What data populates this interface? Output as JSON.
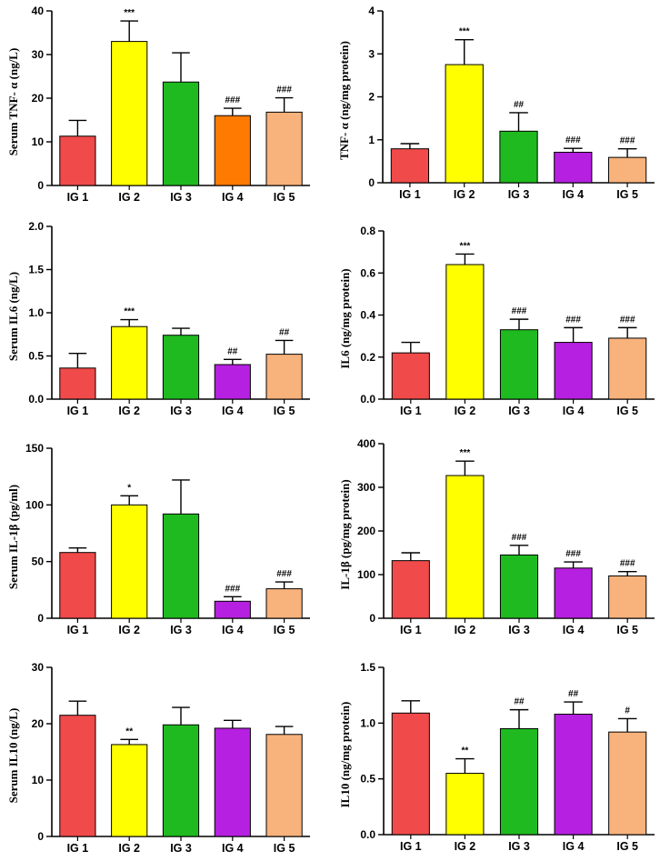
{
  "chart_data": [
    {
      "type": "bar",
      "ylabel": "Serum TNF- α (ng/L)",
      "categories": [
        "IG 1",
        "IG 2",
        "IG 3",
        "IG 4",
        "IG 5"
      ],
      "values": [
        11.3,
        33.0,
        23.7,
        16.0,
        16.8
      ],
      "errors": [
        3.6,
        4.7,
        6.7,
        1.7,
        3.3
      ],
      "significance": [
        "",
        "***",
        "",
        "###",
        "###"
      ],
      "colors": [
        "#f04a4a",
        "#ffff00",
        "#1fba1f",
        "#ff7a00",
        "#f8b27c"
      ],
      "ylim": [
        0,
        40
      ],
      "yticks": [
        0,
        10,
        20,
        30,
        40
      ],
      "ytick_labels": [
        "0",
        "10",
        "20",
        "30",
        "40"
      ]
    },
    {
      "type": "bar",
      "ylabel": "TNF- α (ng/mg protein)",
      "categories": [
        "IG 1",
        "IG 2",
        "IG 3",
        "IG 4",
        "IG 5"
      ],
      "values": [
        0.79,
        2.75,
        1.2,
        0.71,
        0.59
      ],
      "errors": [
        0.12,
        0.58,
        0.43,
        0.09,
        0.2
      ],
      "significance": [
        "",
        "***",
        "##",
        "###",
        "###"
      ],
      "colors": [
        "#f04a4a",
        "#ffff00",
        "#1fba1f",
        "#b620e0",
        "#f8b27c"
      ],
      "ylim": [
        0,
        4
      ],
      "yticks": [
        0,
        1,
        2,
        3,
        4
      ],
      "ytick_labels": [
        "0",
        "1",
        "2",
        "3",
        "4"
      ]
    },
    {
      "type": "bar",
      "ylabel": "Serum IL6 (ng/L)",
      "categories": [
        "IG 1",
        "IG 2",
        "IG 3",
        "IG 4",
        "IG 5"
      ],
      "values": [
        0.36,
        0.84,
        0.74,
        0.4,
        0.52
      ],
      "errors": [
        0.17,
        0.08,
        0.08,
        0.06,
        0.16
      ],
      "significance": [
        "",
        "***",
        "",
        "##",
        "##"
      ],
      "colors": [
        "#f04a4a",
        "#ffff00",
        "#1fba1f",
        "#b620e0",
        "#f8b27c"
      ],
      "ylim": [
        0,
        2
      ],
      "yticks": [
        0,
        0.5,
        1,
        1.5,
        2
      ],
      "ytick_labels": [
        "0.0",
        "0.5",
        "1.0",
        "1.5",
        "2.0"
      ]
    },
    {
      "type": "bar",
      "ylabel": "IL6 (ng/mg protein)",
      "categories": [
        "IG 1",
        "IG 2",
        "IG 3",
        "IG 4",
        "IG 5"
      ],
      "values": [
        0.22,
        0.64,
        0.33,
        0.27,
        0.29
      ],
      "errors": [
        0.05,
        0.05,
        0.05,
        0.07,
        0.05
      ],
      "significance": [
        "",
        "***",
        "###",
        "###",
        "###"
      ],
      "colors": [
        "#f04a4a",
        "#ffff00",
        "#1fba1f",
        "#b620e0",
        "#f8b27c"
      ],
      "ylim": [
        0,
        0.8
      ],
      "yticks": [
        0,
        0.2,
        0.4,
        0.6,
        0.8
      ],
      "ytick_labels": [
        "0.0",
        "0.2",
        "0.4",
        "0.6",
        "0.8"
      ]
    },
    {
      "type": "bar",
      "ylabel": "Serum IL-1β (pg/ml)",
      "categories": [
        "IG 1",
        "IG 2",
        "IG 3",
        "IG 4",
        "IG 5"
      ],
      "values": [
        58,
        100,
        92,
        15,
        26
      ],
      "errors": [
        4,
        8,
        30,
        4,
        6
      ],
      "significance": [
        "",
        "*",
        "",
        "###",
        "###"
      ],
      "colors": [
        "#f04a4a",
        "#ffff00",
        "#1fba1f",
        "#b620e0",
        "#f8b27c"
      ],
      "ylim": [
        0,
        150
      ],
      "yticks": [
        0,
        50,
        100,
        150
      ],
      "ytick_labels": [
        "0",
        "50",
        "100",
        "150"
      ]
    },
    {
      "type": "bar",
      "ylabel": "IL-1β (pg/mg protein)",
      "categories": [
        "IG 1",
        "IG 2",
        "IG 3",
        "IG 4",
        "IG 5"
      ],
      "values": [
        132,
        327,
        145,
        115,
        97
      ],
      "errors": [
        18,
        33,
        22,
        14,
        10
      ],
      "significance": [
        "",
        "***",
        "###",
        "###",
        "###"
      ],
      "colors": [
        "#f04a4a",
        "#ffff00",
        "#1fba1f",
        "#b620e0",
        "#f8b27c"
      ],
      "ylim": [
        0,
        400
      ],
      "yticks": [
        0,
        100,
        200,
        300,
        400
      ],
      "ytick_labels": [
        "0",
        "100",
        "200",
        "300",
        "400"
      ]
    },
    {
      "type": "bar",
      "ylabel": "Serum IL10 (ng/L)",
      "categories": [
        "IG 1",
        "IG 2",
        "IG 3",
        "IG 4",
        "IG 5"
      ],
      "values": [
        21.5,
        16.3,
        19.8,
        19.2,
        18.1
      ],
      "errors": [
        2.5,
        0.9,
        3.1,
        1.4,
        1.4
      ],
      "significance": [
        "",
        "**",
        "",
        "",
        ""
      ],
      "colors": [
        "#f04a4a",
        "#ffff00",
        "#1fba1f",
        "#b620e0",
        "#f8b27c"
      ],
      "ylim": [
        0,
        30
      ],
      "yticks": [
        0,
        10,
        20,
        30
      ],
      "ytick_labels": [
        "0",
        "10",
        "20",
        "30"
      ]
    },
    {
      "type": "bar",
      "ylabel": "IL10 (ng/mg protein)",
      "categories": [
        "IG 1",
        "IG 2",
        "IG 3",
        "IG 4",
        "IG 5"
      ],
      "values": [
        1.09,
        0.55,
        0.95,
        1.08,
        0.92
      ],
      "errors": [
        0.11,
        0.13,
        0.17,
        0.11,
        0.12
      ],
      "significance": [
        "",
        "**",
        "##",
        "##",
        "#"
      ],
      "colors": [
        "#f04a4a",
        "#ffff00",
        "#1fba1f",
        "#b620e0",
        "#f8b27c"
      ],
      "ylim": [
        0,
        1.5
      ],
      "yticks": [
        0,
        0.5,
        1,
        1.5
      ],
      "ytick_labels": [
        "0.0",
        "0.5",
        "1.0",
        "1.5"
      ]
    }
  ]
}
